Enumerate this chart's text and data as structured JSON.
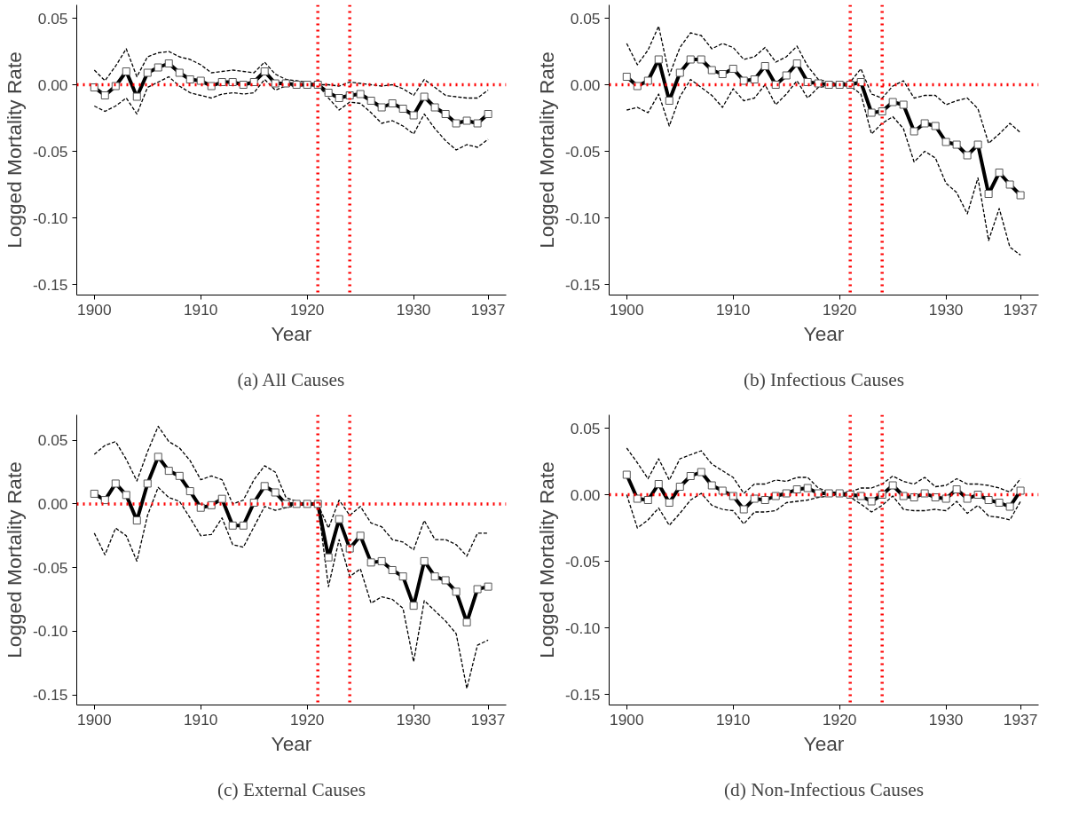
{
  "chart_data": [
    {
      "type": "line",
      "title": "(a) All Causes",
      "xlabel": "Year",
      "ylabel": "Logged Mortality Rate",
      "xlim": [
        1898.35,
        1938.7
      ],
      "ylim": [
        -0.158,
        0.06
      ],
      "xticks": [
        1900,
        1910,
        1920,
        1930,
        1937
      ],
      "yticks": [
        {
          "value": 0.05,
          "label": "0.05"
        },
        {
          "value": 0,
          "label": "0.00"
        },
        {
          "value": -0.05,
          "label": "-0.05"
        },
        {
          "value": -0.1,
          "label": "-0.10"
        },
        {
          "value": -0.15,
          "label": "-0.15"
        }
      ],
      "grid": false,
      "marker": "square",
      "line_style": "solid",
      "x": [
        1900,
        1901,
        1902,
        1903,
        1904,
        1905,
        1906,
        1907,
        1908,
        1909,
        1910,
        1911,
        1912,
        1913,
        1914,
        1915,
        1916,
        1917,
        1918,
        1919,
        1920,
        1921,
        1922,
        1923,
        1924,
        1925,
        1926,
        1927,
        1928,
        1929,
        1930,
        1931,
        1932,
        1933,
        1934,
        1935,
        1936,
        1937
      ],
      "series": [
        {
          "color": "#000000",
          "line_style": "dashed",
          "marker": "none",
          "values": [
            0.011,
            0.003,
            0.014,
            0.027,
            0.006,
            0.021,
            0.024,
            0.025,
            0.021,
            0.019,
            0.015,
            0.009,
            0.01,
            0.011,
            0.01,
            0.009,
            0.017,
            0.008,
            0.004,
            0.003,
            0.002,
            0.0,
            0.0,
            -0.001,
            0.002,
            0.001,
            0.0,
            -0.001,
            0.0,
            -0.003,
            -0.008,
            0.004,
            -0.002,
            -0.008,
            -0.009,
            -0.01,
            -0.01,
            -0.004
          ]
        },
        {
          "color": "#000000",
          "line_style": "dashed",
          "marker": "none",
          "values": [
            -0.016,
            -0.02,
            -0.016,
            -0.01,
            -0.022,
            -0.002,
            0.002,
            0.006,
            -0.001,
            -0.006,
            -0.008,
            -0.01,
            -0.007,
            -0.006,
            -0.007,
            -0.006,
            0.004,
            -0.004,
            -0.001,
            -0.001,
            0.0,
            0.0,
            -0.01,
            -0.019,
            -0.013,
            -0.014,
            -0.021,
            -0.029,
            -0.027,
            -0.031,
            -0.037,
            -0.022,
            -0.033,
            -0.042,
            -0.049,
            -0.045,
            -0.047,
            -0.041
          ]
        },
        {
          "color": "#000000",
          "values": [
            -0.002,
            -0.008,
            -0.001,
            0.01,
            -0.009,
            0.009,
            0.013,
            0.016,
            0.009,
            0.004,
            0.003,
            -0.001,
            0.002,
            0.002,
            0.0,
            0.002,
            0.01,
            0.001,
            0.001,
            0.0,
            0.0,
            0.0,
            -0.006,
            -0.01,
            -0.008,
            -0.007,
            -0.012,
            -0.017,
            -0.014,
            -0.018,
            -0.023,
            -0.009,
            -0.017,
            -0.022,
            -0.029,
            -0.027,
            -0.029,
            -0.022
          ]
        }
      ],
      "ref_lines": [
        {
          "axis": "x",
          "value": 1921,
          "color": "#ff0000",
          "line_style": "dotted"
        },
        {
          "axis": "x",
          "value": 1924,
          "color": "#ff0000",
          "line_style": "dotted"
        },
        {
          "axis": "y",
          "value": 0,
          "color": "#ff0000",
          "line_style": "dotted"
        }
      ]
    },
    {
      "type": "line",
      "title": "(b) Infectious Causes",
      "xlabel": "Year",
      "ylabel": "Logged Mortality Rate",
      "xlim": [
        1898.35,
        1938.7
      ],
      "ylim": [
        -0.158,
        0.06
      ],
      "xticks": [
        1900,
        1910,
        1920,
        1930,
        1937
      ],
      "yticks": [
        {
          "value": 0.05,
          "label": "0.05"
        },
        {
          "value": 0,
          "label": "0.00"
        },
        {
          "value": -0.05,
          "label": "-0.05"
        },
        {
          "value": -0.1,
          "label": "-0.10"
        },
        {
          "value": -0.15,
          "label": "-0.15"
        }
      ],
      "grid": false,
      "marker": "square",
      "line_style": "solid",
      "x": [
        1900,
        1901,
        1902,
        1903,
        1904,
        1905,
        1906,
        1907,
        1908,
        1909,
        1910,
        1911,
        1912,
        1913,
        1914,
        1915,
        1916,
        1917,
        1918,
        1919,
        1920,
        1921,
        1922,
        1923,
        1924,
        1925,
        1926,
        1927,
        1928,
        1929,
        1930,
        1931,
        1932,
        1933,
        1934,
        1935,
        1936,
        1937
      ],
      "series": [
        {
          "color": "#000000",
          "line_style": "dashed",
          "marker": "none",
          "values": [
            0.031,
            0.015,
            0.026,
            0.044,
            0.007,
            0.028,
            0.039,
            0.037,
            0.027,
            0.031,
            0.028,
            0.019,
            0.021,
            0.028,
            0.017,
            0.021,
            0.029,
            0.014,
            0.004,
            0.002,
            0.001,
            0.002,
            0.012,
            -0.007,
            -0.01,
            -0.001,
            0.003,
            -0.01,
            -0.008,
            -0.008,
            -0.015,
            -0.012,
            -0.01,
            -0.018,
            -0.044,
            -0.037,
            -0.029,
            -0.036
          ]
        },
        {
          "color": "#000000",
          "line_style": "dashed",
          "marker": "none",
          "values": [
            -0.019,
            -0.017,
            -0.021,
            -0.007,
            -0.031,
            -0.009,
            0.004,
            -0.002,
            -0.008,
            -0.017,
            -0.003,
            -0.012,
            -0.01,
            0.0,
            -0.015,
            -0.007,
            0.003,
            -0.01,
            -0.002,
            -0.001,
            0.0,
            -0.001,
            -0.007,
            -0.037,
            -0.029,
            -0.024,
            -0.033,
            -0.058,
            -0.05,
            -0.055,
            -0.074,
            -0.081,
            -0.097,
            -0.07,
            -0.117,
            -0.093,
            -0.122,
            -0.128
          ]
        },
        {
          "color": "#000000",
          "values": [
            0.006,
            -0.001,
            0.003,
            0.019,
            -0.012,
            0.009,
            0.019,
            0.019,
            0.011,
            0.008,
            0.012,
            0.003,
            0.004,
            0.014,
            0.0,
            0.007,
            0.016,
            0.002,
            0.001,
            0.0,
            0.0,
            0.0,
            0.002,
            -0.021,
            -0.02,
            -0.013,
            -0.015,
            -0.035,
            -0.029,
            -0.031,
            -0.043,
            -0.045,
            -0.053,
            -0.045,
            -0.082,
            -0.066,
            -0.075,
            -0.083
          ]
        }
      ],
      "ref_lines": [
        {
          "axis": "x",
          "value": 1921,
          "color": "#ff0000",
          "line_style": "dotted"
        },
        {
          "axis": "x",
          "value": 1924,
          "color": "#ff0000",
          "line_style": "dotted"
        },
        {
          "axis": "y",
          "value": 0,
          "color": "#ff0000",
          "line_style": "dotted"
        }
      ]
    },
    {
      "type": "line",
      "title": "(c) External Causes",
      "xlabel": "Year",
      "ylabel": "Logged Mortality Rate",
      "xlim": [
        1898.35,
        1938.7
      ],
      "ylim": [
        -0.158,
        0.07
      ],
      "xticks": [
        1900,
        1910,
        1920,
        1930,
        1937
      ],
      "yticks": [
        {
          "value": 0.05,
          "label": "0.05"
        },
        {
          "value": 0,
          "label": "0.00"
        },
        {
          "value": -0.05,
          "label": "-0.05"
        },
        {
          "value": -0.1,
          "label": "-0.10"
        },
        {
          "value": -0.15,
          "label": "-0.15"
        }
      ],
      "grid": false,
      "marker": "square",
      "line_style": "solid",
      "x": [
        1900,
        1901,
        1902,
        1903,
        1904,
        1905,
        1906,
        1907,
        1908,
        1909,
        1910,
        1911,
        1912,
        1913,
        1914,
        1915,
        1916,
        1917,
        1918,
        1919,
        1920,
        1921,
        1922,
        1923,
        1924,
        1925,
        1926,
        1927,
        1928,
        1929,
        1930,
        1931,
        1932,
        1933,
        1934,
        1935,
        1936,
        1937
      ],
      "series": [
        {
          "color": "#000000",
          "line_style": "dashed",
          "marker": "none",
          "values": [
            0.039,
            0.046,
            0.049,
            0.035,
            0.018,
            0.041,
            0.061,
            0.049,
            0.044,
            0.034,
            0.019,
            0.022,
            0.019,
            0.0,
            0.003,
            0.019,
            0.03,
            0.025,
            0.005,
            0.002,
            0.0,
            0.0,
            -0.019,
            0.003,
            -0.009,
            -0.002,
            -0.015,
            -0.018,
            -0.028,
            -0.03,
            -0.036,
            -0.013,
            -0.028,
            -0.028,
            -0.032,
            -0.041,
            -0.023,
            -0.023
          ]
        },
        {
          "color": "#000000",
          "line_style": "dashed",
          "marker": "none",
          "values": [
            -0.023,
            -0.04,
            -0.019,
            -0.025,
            -0.045,
            -0.009,
            0.013,
            0.005,
            0.002,
            -0.011,
            -0.025,
            -0.024,
            -0.011,
            -0.032,
            -0.034,
            -0.018,
            -0.002,
            -0.005,
            -0.003,
            -0.001,
            -0.001,
            0.0,
            -0.065,
            -0.028,
            -0.057,
            -0.051,
            -0.078,
            -0.073,
            -0.075,
            -0.082,
            -0.124,
            -0.076,
            -0.084,
            -0.092,
            -0.102,
            -0.145,
            -0.111,
            -0.107
          ]
        },
        {
          "color": "#000000",
          "values": [
            0.008,
            0.003,
            0.016,
            0.007,
            -0.013,
            0.016,
            0.037,
            0.026,
            0.022,
            0.01,
            -0.003,
            -0.001,
            0.004,
            -0.017,
            -0.017,
            0.001,
            0.014,
            0.009,
            0.0,
            0.0,
            0.0,
            0.0,
            -0.042,
            -0.012,
            -0.035,
            -0.025,
            -0.046,
            -0.045,
            -0.052,
            -0.057,
            -0.08,
            -0.045,
            -0.057,
            -0.06,
            -0.069,
            -0.093,
            -0.067,
            -0.065
          ]
        }
      ],
      "ref_lines": [
        {
          "axis": "x",
          "value": 1921,
          "color": "#ff0000",
          "line_style": "dotted"
        },
        {
          "axis": "x",
          "value": 1924,
          "color": "#ff0000",
          "line_style": "dotted"
        },
        {
          "axis": "y",
          "value": 0,
          "color": "#ff0000",
          "line_style": "dotted"
        }
      ]
    },
    {
      "type": "line",
      "title": "(d) Non-Infectious Causes",
      "xlabel": "Year",
      "ylabel": "Logged Mortality Rate",
      "xlim": [
        1898.35,
        1938.7
      ],
      "ylim": [
        -0.158,
        0.06
      ],
      "xticks": [
        1900,
        1910,
        1920,
        1930,
        1937
      ],
      "yticks": [
        {
          "value": 0.05,
          "label": "0.05"
        },
        {
          "value": 0,
          "label": "0.00"
        },
        {
          "value": -0.05,
          "label": "-0.05"
        },
        {
          "value": -0.1,
          "label": "-0.10"
        },
        {
          "value": -0.15,
          "label": "-0.15"
        }
      ],
      "grid": false,
      "marker": "square",
      "line_style": "solid",
      "x": [
        1900,
        1901,
        1902,
        1903,
        1904,
        1905,
        1906,
        1907,
        1908,
        1909,
        1910,
        1911,
        1912,
        1913,
        1914,
        1915,
        1916,
        1917,
        1918,
        1919,
        1920,
        1921,
        1922,
        1923,
        1924,
        1925,
        1926,
        1927,
        1928,
        1929,
        1930,
        1931,
        1932,
        1933,
        1934,
        1935,
        1936,
        1937
      ],
      "series": [
        {
          "color": "#000000",
          "line_style": "dashed",
          "marker": "none",
          "values": [
            0.035,
            0.024,
            0.012,
            0.027,
            0.011,
            0.027,
            0.03,
            0.033,
            0.023,
            0.018,
            0.013,
            0.001,
            0.008,
            0.008,
            0.011,
            0.01,
            0.013,
            0.013,
            0.005,
            0.002,
            0.001,
            0.002,
            0.005,
            0.005,
            0.008,
            0.014,
            0.01,
            0.008,
            0.013,
            0.006,
            0.007,
            0.012,
            0.008,
            0.008,
            0.007,
            0.005,
            0.002,
            0.012
          ]
        },
        {
          "color": "#000000",
          "line_style": "dashed",
          "marker": "none",
          "values": [
            0.0,
            -0.025,
            -0.019,
            -0.01,
            -0.023,
            -0.014,
            -0.004,
            0.001,
            -0.008,
            -0.011,
            -0.012,
            -0.022,
            -0.013,
            -0.013,
            -0.012,
            -0.006,
            -0.005,
            -0.004,
            -0.002,
            -0.001,
            0.0,
            -0.002,
            -0.007,
            -0.013,
            -0.008,
            -0.001,
            -0.011,
            -0.012,
            -0.012,
            -0.011,
            -0.012,
            -0.005,
            -0.014,
            -0.008,
            -0.016,
            -0.017,
            -0.019,
            -0.005
          ]
        },
        {
          "color": "#000000",
          "values": [
            0.015,
            -0.003,
            -0.004,
            0.008,
            -0.006,
            0.006,
            0.014,
            0.017,
            0.007,
            0.003,
            -0.001,
            -0.011,
            -0.003,
            -0.004,
            -0.001,
            0.001,
            0.004,
            0.005,
            0.001,
            0.001,
            0.001,
            0.0,
            -0.001,
            -0.005,
            0.0,
            0.007,
            -0.001,
            -0.002,
            0.001,
            -0.002,
            -0.003,
            0.004,
            -0.003,
            0.0,
            -0.004,
            -0.006,
            -0.009,
            0.003
          ]
        }
      ],
      "ref_lines": [
        {
          "axis": "x",
          "value": 1921,
          "color": "#ff0000",
          "line_style": "dotted"
        },
        {
          "axis": "x",
          "value": 1924,
          "color": "#ff0000",
          "line_style": "dotted"
        },
        {
          "axis": "y",
          "value": 0,
          "color": "#ff0000",
          "line_style": "dotted"
        }
      ]
    }
  ]
}
